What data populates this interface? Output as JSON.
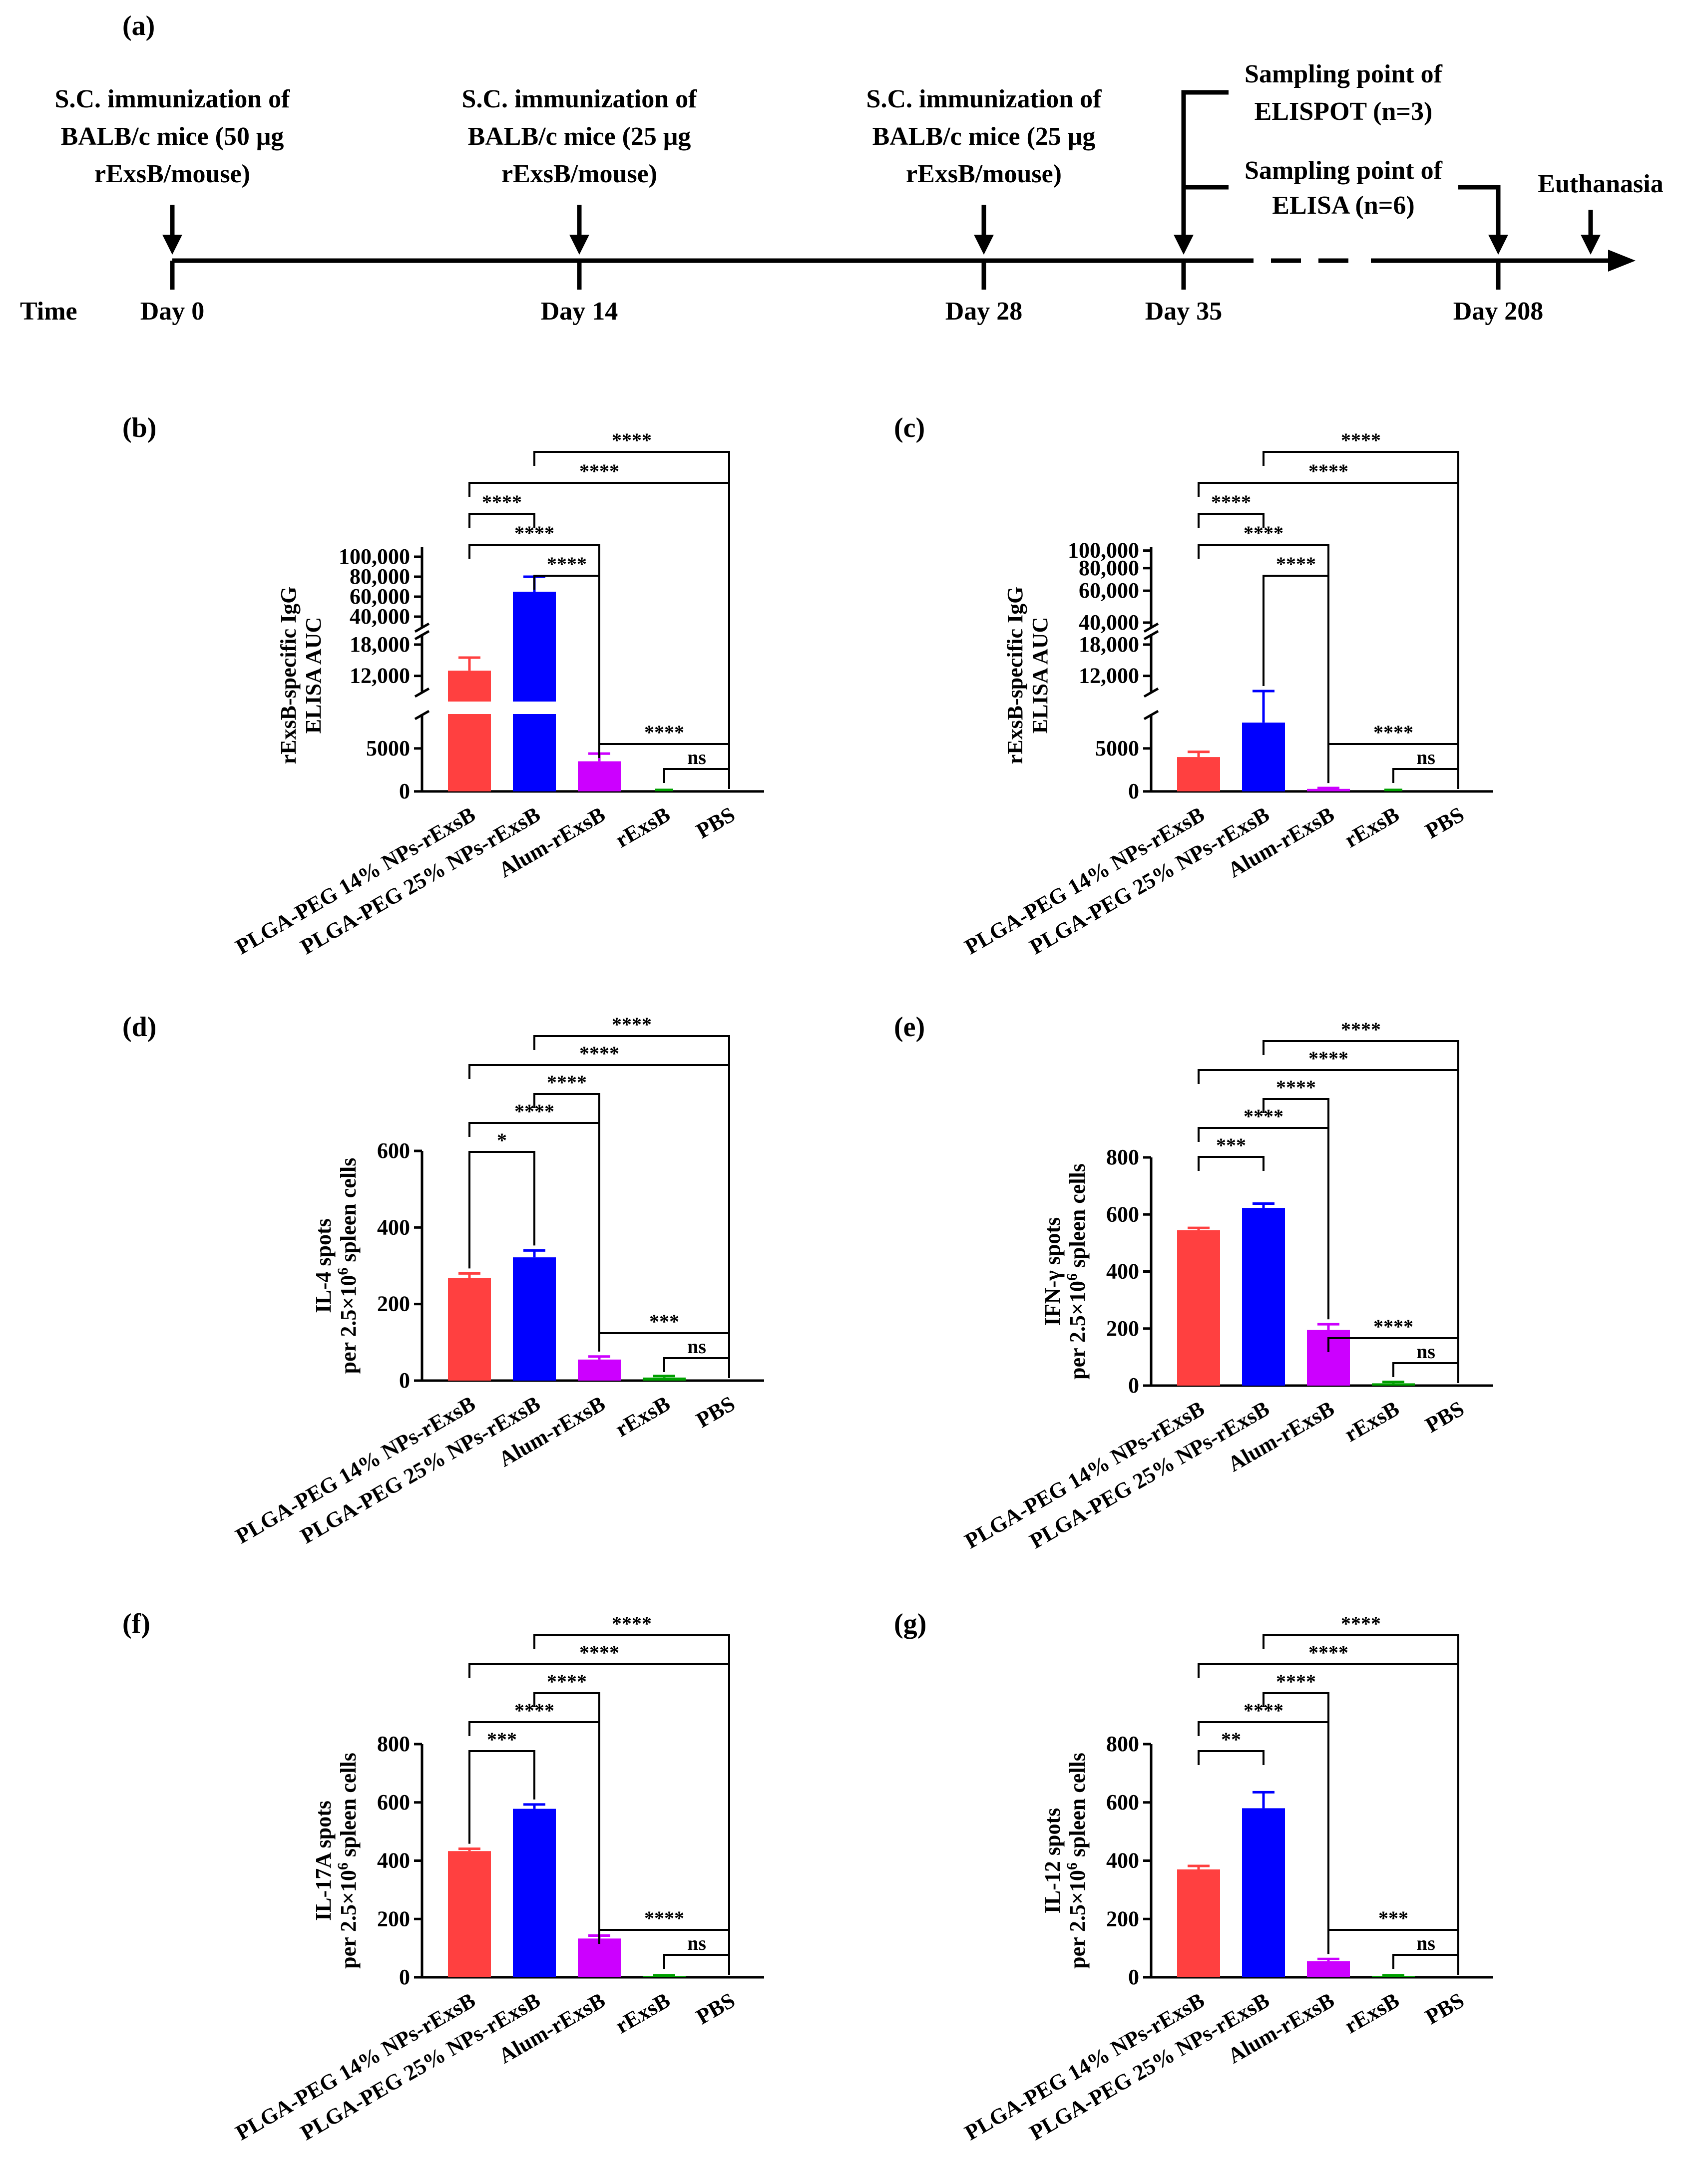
{
  "figure_labels": {
    "a": "(a)",
    "b": "(b)",
    "c": "(c)",
    "d": "(d)",
    "e": "(e)",
    "f": "(f)",
    "g": "(g)"
  },
  "timeline": {
    "time_label": "Time",
    "imm0": [
      "S.C. immunization of",
      "BALB/c mice (50 μg",
      "rExsB/mouse)"
    ],
    "imm14": [
      "S.C. immunization of",
      "BALB/c mice (25 μg",
      "rExsB/mouse)"
    ],
    "imm28": [
      "S.C. immunization of",
      "BALB/c mice (25 μg",
      "rExsB/mouse)"
    ],
    "elispot": [
      "Sampling point of",
      "ELISPOT (n=3)"
    ],
    "elisa": [
      "Sampling point of",
      "ELISA (n=6)"
    ],
    "euthanasia": "Euthanasia",
    "days": [
      "Day 0",
      "Day 14",
      "Day 28",
      "Day 35",
      "Day 208"
    ]
  },
  "colors": {
    "nps14": "#ff4040",
    "nps25": "#0000ff",
    "alum": "#cc00ff",
    "rexsb": "#00a000",
    "pbs": "#000000"
  },
  "categories": [
    "PLGA-PEG 14% NPs-rExsB",
    "PLGA-PEG 25% NPs-rExsB",
    "Alum-rExsB",
    "rExsB",
    "PBS"
  ],
  "chart_data": [
    {
      "id": "b",
      "type": "bar",
      "ylabel": [
        "rExsB-specific IgG",
        "ELISA AUC"
      ],
      "categories": [
        "PLGA-PEG 14% NPs-rExsB",
        "PLGA-PEG 25% NPs-rExsB",
        "Alum-rExsB",
        "rExsB",
        "PBS"
      ],
      "values": [
        13000,
        65000,
        3500,
        0,
        0
      ],
      "errors": [
        2500,
        15000,
        900,
        0,
        0
      ],
      "axis_segments": [
        {
          "range": [
            0,
            9000
          ],
          "ticks": [
            0,
            5000
          ],
          "labels": [
            "0",
            "5000"
          ],
          "scale": "linear"
        },
        {
          "range": [
            9000,
            20000
          ],
          "ticks": [
            12000,
            18000
          ],
          "labels": [
            "12,000",
            "18,000"
          ],
          "scale": "linear"
        },
        {
          "range": [
            30000,
            110000
          ],
          "ticks": [
            40000,
            60000,
            80000,
            100000
          ],
          "labels": [
            "40,000",
            "60,000",
            "80,000",
            "100,000"
          ],
          "scale": "linear"
        }
      ],
      "significance": [
        {
          "from": 1,
          "to": 4,
          "label": "****"
        },
        {
          "from": 0,
          "to": 4,
          "label": "****"
        },
        {
          "from": 0,
          "to": 1,
          "label": "****"
        },
        {
          "from": 0,
          "to": 2,
          "label": "****"
        },
        {
          "from": 1,
          "to": 2,
          "label": "****"
        },
        {
          "from": 2,
          "to": 4,
          "label": "****"
        },
        {
          "from": 3,
          "to": 4,
          "label": "ns"
        }
      ]
    },
    {
      "id": "c",
      "type": "bar",
      "ylabel": [
        "rExsB-specific IgG",
        "ELISA AUC"
      ],
      "categories": [
        "PLGA-PEG 14% NPs-rExsB",
        "PLGA-PEG 25% NPs-rExsB",
        "Alum-rExsB",
        "rExsB",
        "PBS"
      ],
      "values": [
        4000,
        8000,
        300,
        0,
        0
      ],
      "errors": [
        600,
        1100,
        100,
        0,
        0
      ],
      "axis_segments": [
        {
          "range": [
            0,
            9000
          ],
          "ticks": [
            0,
            5000
          ],
          "labels": [
            "0",
            "5000"
          ],
          "scale": "linear"
        },
        {
          "range": [
            9000,
            20000
          ],
          "ticks": [
            12000,
            18000
          ],
          "labels": [
            "12,000",
            "18,000"
          ],
          "scale": "linear"
        },
        {
          "range": [
            38000,
            105000
          ],
          "ticks": [
            40000,
            60000,
            80000,
            100000
          ],
          "labels": [
            "40,000",
            "60,000",
            "80,000",
            "100,000"
          ],
          "scale": "log"
        }
      ],
      "significance": [
        {
          "from": 1,
          "to": 4,
          "label": "****"
        },
        {
          "from": 0,
          "to": 4,
          "label": "****"
        },
        {
          "from": 0,
          "to": 1,
          "label": "****"
        },
        {
          "from": 0,
          "to": 2,
          "label": "****"
        },
        {
          "from": 1,
          "to": 2,
          "label": "****"
        },
        {
          "from": 2,
          "to": 4,
          "label": "****"
        },
        {
          "from": 3,
          "to": 4,
          "label": "ns"
        }
      ]
    },
    {
      "id": "d",
      "type": "bar",
      "ylabel": [
        "IL-4 spots",
        "per 2.5×10",
        "6",
        " spleen cells"
      ],
      "categories": [
        "PLGA-PEG 14% NPs-rExsB",
        "PLGA-PEG 25% NPs-rExsB",
        "Alum-rExsB",
        "rExsB",
        "PBS"
      ],
      "values": [
        268,
        322,
        55,
        8,
        0
      ],
      "errors": [
        12,
        18,
        8,
        4,
        0
      ],
      "ylim": [
        0,
        600
      ],
      "ticks": [
        0,
        200,
        400,
        600
      ],
      "significance": [
        {
          "from": 1,
          "to": 4,
          "label": "****"
        },
        {
          "from": 0,
          "to": 4,
          "label": "****"
        },
        {
          "from": 1,
          "to": 2,
          "label": "****"
        },
        {
          "from": 0,
          "to": 2,
          "label": "****"
        },
        {
          "from": 0,
          "to": 1,
          "label": "*"
        },
        {
          "from": 2,
          "to": 4,
          "label": "***"
        },
        {
          "from": 3,
          "to": 4,
          "label": "ns"
        }
      ]
    },
    {
      "id": "e",
      "type": "bar",
      "ylabel": [
        "IFN-γ  spots",
        "per 2.5×10",
        "6",
        " spleen cells"
      ],
      "categories": [
        "PLGA-PEG 14% NPs-rExsB",
        "PLGA-PEG 25% NPs-rExsB",
        "Alum-rExsB",
        "rExsB",
        "PBS"
      ],
      "values": [
        545,
        623,
        195,
        8,
        0
      ],
      "errors": [
        8,
        15,
        20,
        5,
        0
      ],
      "ylim": [
        0,
        800
      ],
      "ticks": [
        0,
        200,
        400,
        600,
        800
      ],
      "significance": [
        {
          "from": 1,
          "to": 4,
          "label": "****"
        },
        {
          "from": 0,
          "to": 4,
          "label": "****"
        },
        {
          "from": 1,
          "to": 2,
          "label": "****"
        },
        {
          "from": 0,
          "to": 2,
          "label": "****"
        },
        {
          "from": 0,
          "to": 1,
          "label": "***"
        },
        {
          "from": 2,
          "to": 4,
          "label": "****"
        },
        {
          "from": 3,
          "to": 4,
          "label": "ns"
        }
      ]
    },
    {
      "id": "f",
      "type": "bar",
      "ylabel": [
        "IL-17A spots",
        "per 2.5×10",
        "6",
        " spleen cells"
      ],
      "categories": [
        "PLGA-PEG 14% NPs-rExsB",
        "PLGA-PEG 25% NPs-rExsB",
        "Alum-rExsB",
        "rExsB",
        "PBS"
      ],
      "values": [
        433,
        578,
        133,
        4,
        0
      ],
      "errors": [
        8,
        15,
        10,
        3,
        0
      ],
      "ylim": [
        0,
        800
      ],
      "ticks": [
        0,
        200,
        400,
        600,
        800
      ],
      "significance": [
        {
          "from": 1,
          "to": 4,
          "label": "****"
        },
        {
          "from": 0,
          "to": 4,
          "label": "****"
        },
        {
          "from": 1,
          "to": 2,
          "label": "****"
        },
        {
          "from": 0,
          "to": 2,
          "label": "****"
        },
        {
          "from": 0,
          "to": 1,
          "label": "***"
        },
        {
          "from": 2,
          "to": 4,
          "label": "****"
        },
        {
          "from": 3,
          "to": 4,
          "label": "ns"
        }
      ]
    },
    {
      "id": "g",
      "type": "bar",
      "ylabel": [
        "IL-12 spots",
        "per 2.5×10",
        "6",
        " spleen cells"
      ],
      "categories": [
        "PLGA-PEG 14% NPs-rExsB",
        "PLGA-PEG 25% NPs-rExsB",
        "Alum-rExsB",
        "rExsB",
        "PBS"
      ],
      "values": [
        370,
        580,
        55,
        4,
        0
      ],
      "errors": [
        12,
        55,
        8,
        3,
        0
      ],
      "ylim": [
        0,
        800
      ],
      "ticks": [
        0,
        200,
        400,
        600,
        800
      ],
      "significance": [
        {
          "from": 1,
          "to": 4,
          "label": "****"
        },
        {
          "from": 0,
          "to": 4,
          "label": "****"
        },
        {
          "from": 1,
          "to": 2,
          "label": "****"
        },
        {
          "from": 0,
          "to": 2,
          "label": "****"
        },
        {
          "from": 0,
          "to": 1,
          "label": "**"
        },
        {
          "from": 2,
          "to": 4,
          "label": "***"
        },
        {
          "from": 3,
          "to": 4,
          "label": "ns"
        }
      ]
    }
  ]
}
